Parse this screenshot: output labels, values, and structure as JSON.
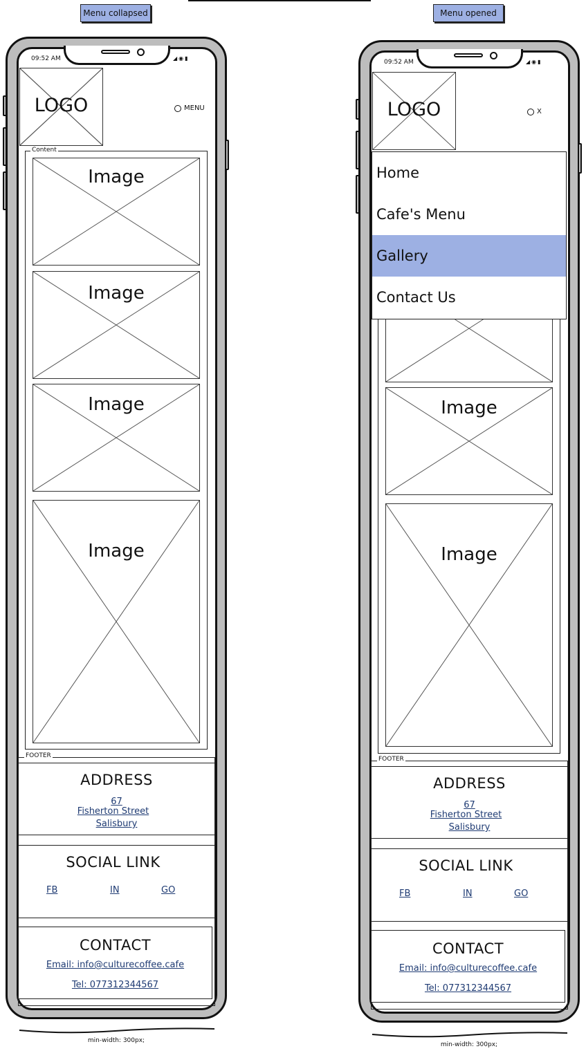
{
  "labels": {
    "collapsed": "Menu collapsed",
    "opened": "Menu opened",
    "min_width": "min-width: 300px;"
  },
  "status": {
    "time": "09:52 AM",
    "icons": "signal-icon wifi-icon battery-icon"
  },
  "logo": "LOGO",
  "image_label": "Image",
  "content_legend": "Content",
  "footer_legend": "FOOTER",
  "menu_toggle": {
    "closed": "MENU",
    "open": "X"
  },
  "nav": {
    "items": [
      "Home",
      "Cafe's Menu",
      "Gallery",
      "Contact Us"
    ],
    "active": "Gallery",
    "active_color": "#9db0e3"
  },
  "footer": {
    "address": {
      "heading": "ADDRESS",
      "line1": "67",
      "line2": "Fisherton Street",
      "line3": "Salisbury"
    },
    "social": {
      "heading": "SOCIAL LINK",
      "fb": "FB",
      "in": "IN",
      "go": "GO"
    },
    "contact": {
      "heading": "CONTACT",
      "email": "Email: info@culturecoffee.cafe",
      "tel": "Tel: 077312344567"
    }
  },
  "colors": {
    "accent": "#9db0e3",
    "link": "#1f3b73",
    "frame": "#bdbdbd"
  }
}
